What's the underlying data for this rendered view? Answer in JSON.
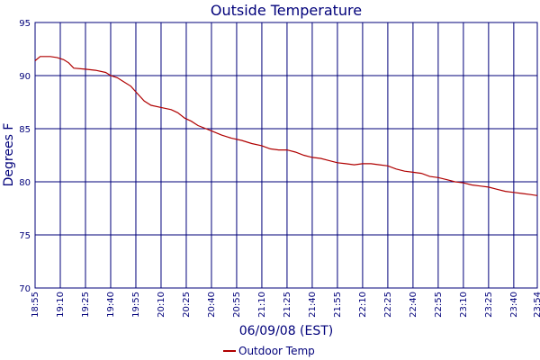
{
  "chart_data": {
    "type": "line",
    "title": "Outside Temperature",
    "xlabel": "06/09/08 (EST)",
    "ylabel": "Degrees F",
    "ylim": [
      70,
      95
    ],
    "yticks": [
      "70",
      "75",
      "80",
      "85",
      "90",
      "95"
    ],
    "xticks": [
      "18:55",
      "19:10",
      "19:25",
      "19:40",
      "19:55",
      "20:10",
      "20:25",
      "20:40",
      "20:55",
      "21:10",
      "21:25",
      "21:40",
      "21:55",
      "22:10",
      "22:25",
      "22:40",
      "22:55",
      "23:10",
      "23:25",
      "23:40",
      "23:54"
    ],
    "grid": true,
    "legend_position": "bottom",
    "series_color": "#b00000",
    "grid_color": "#00007a",
    "series": [
      {
        "name": "Outdoor Temp",
        "x": [
          "18:55",
          "18:58",
          "19:00",
          "19:04",
          "19:08",
          "19:12",
          "19:15",
          "19:18",
          "19:25",
          "19:31",
          "19:37",
          "19:40",
          "19:44",
          "19:48",
          "19:52",
          "19:56",
          "20:00",
          "20:04",
          "20:10",
          "20:16",
          "20:20",
          "20:24",
          "20:28",
          "20:32",
          "20:40",
          "20:46",
          "20:52",
          "20:58",
          "21:04",
          "21:10",
          "21:15",
          "21:20",
          "21:25",
          "21:30",
          "21:35",
          "21:40",
          "21:45",
          "21:50",
          "21:55",
          "22:00",
          "22:05",
          "22:10",
          "22:15",
          "22:20",
          "22:25",
          "22:30",
          "22:35",
          "22:40",
          "22:45",
          "22:50",
          "22:55",
          "23:00",
          "23:05",
          "23:10",
          "23:15",
          "23:20",
          "23:25",
          "23:30",
          "23:35",
          "23:40",
          "23:45",
          "23:50",
          "23:54"
        ],
        "y": [
          91.4,
          91.8,
          91.8,
          91.8,
          91.7,
          91.5,
          91.2,
          90.7,
          90.6,
          90.5,
          90.3,
          90.0,
          89.8,
          89.4,
          89.0,
          88.3,
          87.6,
          87.2,
          87.0,
          86.8,
          86.5,
          86.0,
          85.7,
          85.3,
          84.8,
          84.4,
          84.1,
          83.9,
          83.6,
          83.4,
          83.1,
          83.0,
          83.0,
          82.8,
          82.5,
          82.3,
          82.2,
          82.0,
          81.8,
          81.7,
          81.6,
          81.7,
          81.7,
          81.6,
          81.5,
          81.2,
          81.0,
          80.9,
          80.8,
          80.5,
          80.4,
          80.2,
          80.0,
          79.9,
          79.7,
          79.6,
          79.5,
          79.3,
          79.1,
          79.0,
          78.9,
          78.8,
          78.7
        ]
      }
    ]
  }
}
